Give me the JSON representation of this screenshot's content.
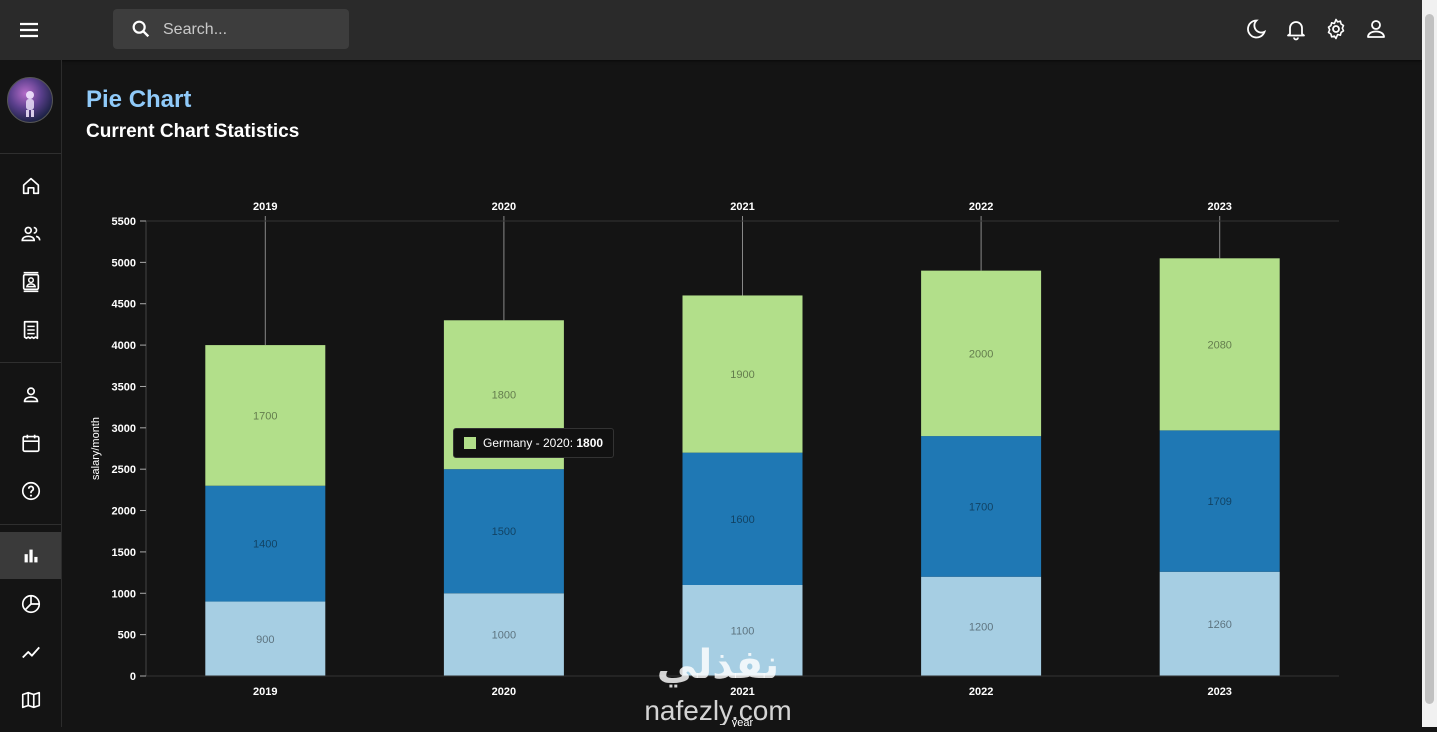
{
  "header": {
    "search_placeholder": "Search...",
    "icons": [
      "menu-icon",
      "moon-icon",
      "bell-icon",
      "gear-icon",
      "user-icon"
    ]
  },
  "sidebar": {
    "items": [
      {
        "name": "home",
        "icon": "home-icon"
      },
      {
        "name": "team",
        "icon": "people-icon"
      },
      {
        "name": "contacts",
        "icon": "contacts-icon"
      },
      {
        "name": "invoices",
        "icon": "receipt-icon"
      },
      {
        "name": "profile",
        "icon": "person-icon"
      },
      {
        "name": "calendar",
        "icon": "calendar-icon"
      },
      {
        "name": "faq",
        "icon": "help-icon"
      },
      {
        "name": "bar-chart",
        "icon": "bar-chart-icon",
        "active": true
      },
      {
        "name": "pie-chart",
        "icon": "pie-chart-icon"
      },
      {
        "name": "line-chart",
        "icon": "line-chart-icon"
      },
      {
        "name": "map",
        "icon": "map-icon"
      }
    ]
  },
  "page": {
    "title": "Pie Chart",
    "subtitle": "Current Chart Statistics"
  },
  "tooltip": {
    "label": "Germany - 2020: ",
    "value": "1800",
    "color": "#b2df8a"
  },
  "watermark": {
    "arabic": "نفذلي",
    "latin": "nafezly.com"
  },
  "colors": {
    "accent": "#90caf9",
    "topbar": "#2a2a2a",
    "background": "#141414"
  },
  "chart_data": {
    "type": "bar",
    "stacked": true,
    "categories": [
      "2019",
      "2020",
      "2021",
      "2022",
      "2023"
    ],
    "series": [
      {
        "values": [
          900,
          1000,
          1100,
          1200,
          1260
        ],
        "color": "#a6cee3"
      },
      {
        "values": [
          1400,
          1500,
          1600,
          1700,
          1709
        ],
        "color": "#1f78b4"
      },
      {
        "name": "Germany",
        "values": [
          1700,
          1800,
          1900,
          2000,
          2080
        ],
        "color": "#b2df8a"
      }
    ],
    "ylabel": "salary/month",
    "xlabel": "year",
    "ylim": [
      0,
      5500
    ],
    "yticks": [
      0,
      500,
      1000,
      1500,
      2000,
      2500,
      3000,
      3500,
      4000,
      4500,
      5000,
      5500
    ],
    "top_axis": true,
    "grid": false
  }
}
